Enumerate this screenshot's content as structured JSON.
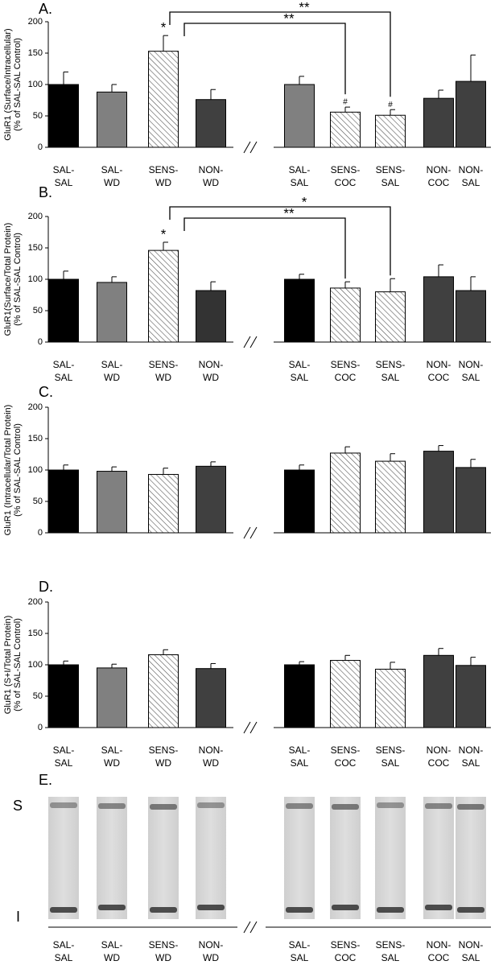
{
  "chart_data": [
    {
      "type": "bar",
      "panel": "A.",
      "ylabel": [
        "GluR1 (Surface/Intracellular)",
        "(% of SAL-SAL Control)"
      ],
      "categories": [
        "SAL-\nSAL",
        "SAL-\nWD",
        "SENS-\nWD",
        "NON-\nWD",
        "SAL-\nSAL",
        "SENS-\nCOC",
        "SENS-\nSAL",
        "NON-\nCOC",
        "NON-\nSAL"
      ],
      "values": [
        100,
        88,
        153,
        76,
        100,
        56,
        51,
        78,
        105
      ],
      "errors": [
        20,
        12,
        25,
        16,
        13,
        8,
        9,
        13,
        42
      ],
      "colors": [
        "#000000",
        "#808080",
        "#ffffff",
        "#404040",
        "#808080",
        "#ffffff",
        "#ffffff",
        "#404040",
        "#404040"
      ],
      "hatched": [
        false,
        false,
        true,
        false,
        false,
        true,
        true,
        false,
        false
      ],
      "bar_labels": [
        null,
        null,
        "*",
        null,
        null,
        "#",
        "#",
        null,
        null
      ],
      "brackets": [
        {
          "from": 2,
          "to": 6,
          "label": "**"
        },
        {
          "from": 2,
          "to": 5,
          "label": "**"
        }
      ],
      "ylim": [
        0,
        200
      ],
      "yticks": [
        0,
        50,
        100,
        150,
        200
      ]
    },
    {
      "type": "bar",
      "panel": "B.",
      "ylabel": [
        "GluR1(Surface/Total Protein)",
        "(% of SAL-SAL Control)"
      ],
      "categories": [
        "SAL-\nSAL",
        "SAL-\nWD",
        "SENS-\nWD",
        "NON-\nWD",
        "SAL-\nSAL",
        "SENS-\nCOC",
        "SENS-\nSAL",
        "NON-\nCOC",
        "NON-\nSAL"
      ],
      "values": [
        100,
        95,
        146,
        82,
        100,
        86,
        80,
        104,
        82
      ],
      "errors": [
        13,
        9,
        13,
        14,
        8,
        10,
        21,
        19,
        22
      ],
      "colors": [
        "#000000",
        "#808080",
        "#ffffff",
        "#333333",
        "#000000",
        "#ffffff",
        "#ffffff",
        "#404040",
        "#404040"
      ],
      "hatched": [
        false,
        false,
        true,
        false,
        false,
        true,
        true,
        false,
        false
      ],
      "bar_labels": [
        null,
        null,
        "*",
        null,
        null,
        null,
        null,
        null,
        null
      ],
      "brackets": [
        {
          "from": 2,
          "to": 6,
          "label": "*"
        },
        {
          "from": 2,
          "to": 5,
          "label": "**"
        }
      ],
      "ylim": [
        0,
        200
      ],
      "yticks": [
        0,
        50,
        100,
        150,
        200
      ]
    },
    {
      "type": "bar",
      "panel": "C.",
      "ylabel": [
        "GluR1 (Intracellular/Total Protein)",
        "(% of SAL-SAL Control)"
      ],
      "categories": [
        null,
        null,
        null,
        null,
        null,
        null,
        null,
        null,
        null
      ],
      "values": [
        100,
        98,
        93,
        106,
        100,
        127,
        114,
        130,
        104
      ],
      "errors": [
        8,
        7,
        10,
        7,
        8,
        10,
        12,
        9,
        13
      ],
      "colors": [
        "#000000",
        "#808080",
        "#ffffff",
        "#404040",
        "#000000",
        "#ffffff",
        "#ffffff",
        "#404040",
        "#404040"
      ],
      "hatched": [
        false,
        false,
        true,
        false,
        false,
        true,
        true,
        false,
        false
      ],
      "ylim": [
        0,
        200
      ],
      "yticks": [
        0,
        50,
        100,
        150,
        200
      ]
    },
    {
      "type": "bar",
      "panel": "D.",
      "ylabel": [
        "GluR1 (S+I/Total Protein)",
        "(% of SAL-SAL Control)"
      ],
      "categories": [
        "SAL-\nSAL",
        "SAL-\nWD",
        "SENS-\nWD",
        "NON-\nWD",
        "SAL-\nSAL",
        "SENS-\nCOC",
        "SENS-\nSAL",
        "NON-\nCOC",
        "NON-\nSAL"
      ],
      "values": [
        100,
        95,
        116,
        94,
        100,
        107,
        93,
        115,
        99
      ],
      "errors": [
        6,
        6,
        8,
        8,
        5,
        8,
        11,
        11,
        13
      ],
      "colors": [
        "#000000",
        "#808080",
        "#ffffff",
        "#404040",
        "#000000",
        "#ffffff",
        "#ffffff",
        "#404040",
        "#404040"
      ],
      "hatched": [
        false,
        false,
        true,
        false,
        false,
        true,
        true,
        false,
        false
      ],
      "ylim": [
        0,
        200
      ],
      "yticks": [
        0,
        50,
        100,
        150,
        200
      ]
    }
  ],
  "blot": {
    "panel": "E.",
    "band_labels": [
      "S",
      "I"
    ],
    "lanes": [
      "SAL-\nSAL",
      "SAL-\nWD",
      "SENS-\nWD",
      "NON-\nWD",
      "SAL-\nSAL",
      "SENS-\nCOC",
      "SENS-\nSAL",
      "NON-\nCOC",
      "NON-\nSAL"
    ]
  }
}
